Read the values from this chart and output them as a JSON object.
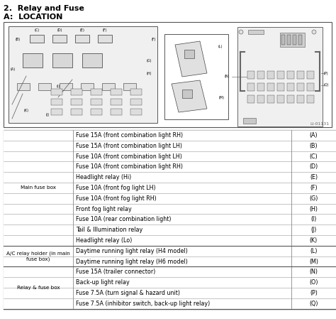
{
  "title1": "2.  Relay and Fuse",
  "title2": "A:  LOCATION",
  "diagram_label": "LI-01131",
  "bg_color": "#ffffff",
  "sections": [
    {
      "name": "Main fuse box",
      "rows": [
        [
          "Fuse 15A (front combination light RH)",
          "(A)"
        ],
        [
          "Fuse 15A (front combination light LH)",
          "(B)"
        ],
        [
          "Fuse 10A (front combination light LH)",
          "(C)"
        ],
        [
          "Fuse 10A (front combination light RH)",
          "(D)"
        ],
        [
          "Headlight relay (Hi)",
          "(E)"
        ],
        [
          "Fuse 10A (front fog light LH)",
          "(F)"
        ],
        [
          "Fuse 10A (front fog light RH)",
          "(G)"
        ],
        [
          "Front fog light relay",
          "(H)"
        ],
        [
          "Fuse 10A (rear combination light)",
          "(I)"
        ],
        [
          "Tail & Illumination relay",
          "(J)"
        ],
        [
          "Headlight relay (Lo)",
          "(K)"
        ]
      ]
    },
    {
      "name": "A/C relay holder (in main fuse box)",
      "rows": [
        [
          "Daytime running light relay (H4 model)",
          "(L)"
        ],
        [
          "Daytime running light relay (H6 model)",
          "(M)"
        ]
      ]
    },
    {
      "name": "Relay & fuse box",
      "rows": [
        [
          "Fuse 15A (trailer connector)",
          "(N)"
        ],
        [
          "Back-up light relay",
          "(O)"
        ],
        [
          "Fuse 7.5A (turn signal & hazard unit)",
          "(P)"
        ],
        [
          "Fuse 7.5A (inhibitor switch, back-up light relay)",
          "(Q)"
        ]
      ]
    }
  ]
}
